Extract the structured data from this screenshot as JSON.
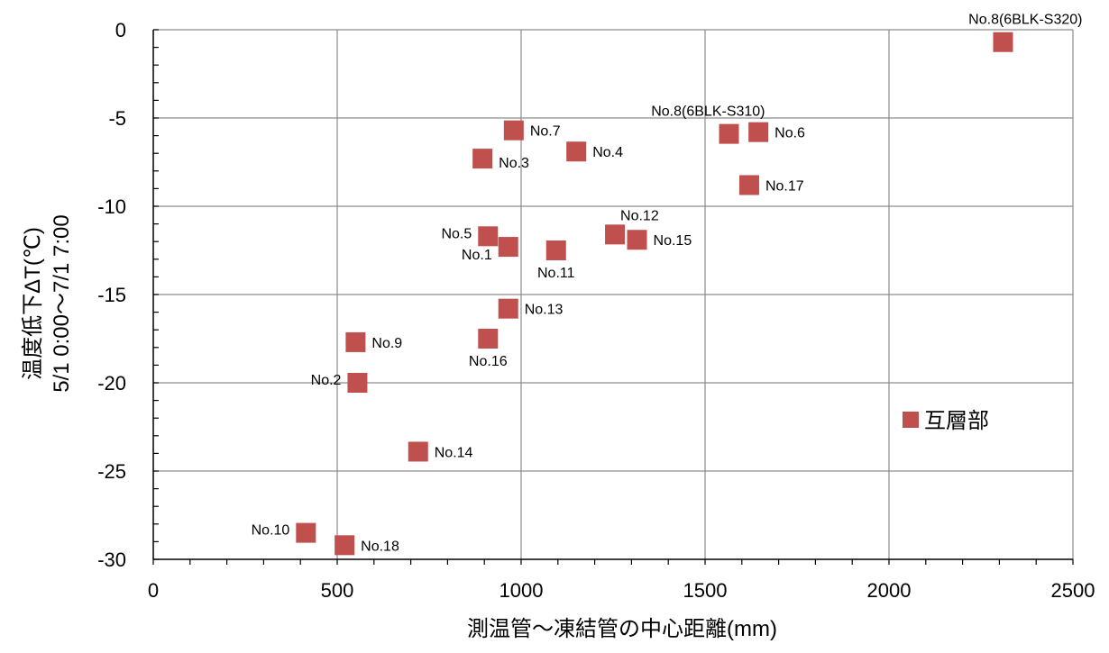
{
  "chart_data": {
    "type": "scatter",
    "title": "",
    "xlabel": "測温管～凍結管の中心距離(mm)",
    "ylabel_line1": "温度低下ΔT(℃)",
    "ylabel_line2": "5/1 0:00～7/1 7:00",
    "xlim": [
      0,
      2500
    ],
    "ylim": [
      -30,
      0
    ],
    "x_major_ticks": [
      0,
      500,
      1000,
      1500,
      2000,
      2500
    ],
    "y_major_ticks": [
      0,
      -5,
      -10,
      -15,
      -20,
      -25,
      -30
    ],
    "x_tick_labels": [
      "0",
      "500",
      "1000",
      "1500",
      "2000",
      "2500"
    ],
    "y_tick_labels": [
      "0",
      "-5",
      "-10",
      "-15",
      "-20",
      "-25",
      "-30"
    ],
    "x_minor_step": 100,
    "y_minor_step": 1,
    "grid": true,
    "marker": "square",
    "legend_placement": "right",
    "series": [
      {
        "name": "互層部",
        "color": "#C0504D",
        "points": [
          {
            "label": "No.1",
            "x": 965,
            "y": -12.3,
            "label_side": "left-below"
          },
          {
            "label": "No.2",
            "x": 555,
            "y": -20.0,
            "label_side": "left"
          },
          {
            "label": "No.3",
            "x": 895,
            "y": -7.3,
            "label_side": "right-below"
          },
          {
            "label": "No.4",
            "x": 1150,
            "y": -6.9,
            "label_side": "right"
          },
          {
            "label": "No.5",
            "x": 910,
            "y": -11.7,
            "label_side": "left"
          },
          {
            "label": "No.6",
            "x": 1645,
            "y": -5.8,
            "label_side": "right"
          },
          {
            "label": "No.7",
            "x": 980,
            "y": -5.7,
            "label_side": "right"
          },
          {
            "label": "No.8(6BLK-S310)",
            "x": 1565,
            "y": -5.9,
            "label_side": "above"
          },
          {
            "label": "No.8(6BLK-S320)",
            "x": 2310,
            "y": -0.7,
            "label_side": "above"
          },
          {
            "label": "No.9",
            "x": 550,
            "y": -17.7,
            "label_side": "right"
          },
          {
            "label": "No.10",
            "x": 415,
            "y": -28.5,
            "label_side": "left"
          },
          {
            "label": "No.11",
            "x": 1095,
            "y": -12.5,
            "label_side": "below"
          },
          {
            "label": "No.12",
            "x": 1255,
            "y": -11.6,
            "label_side": "above"
          },
          {
            "label": "No.13",
            "x": 965,
            "y": -15.8,
            "label_side": "right"
          },
          {
            "label": "No.14",
            "x": 720,
            "y": -23.9,
            "label_side": "right"
          },
          {
            "label": "No.15",
            "x": 1315,
            "y": -11.9,
            "label_side": "right"
          },
          {
            "label": "No.16",
            "x": 910,
            "y": -17.5,
            "label_side": "below"
          },
          {
            "label": "No.17",
            "x": 1620,
            "y": -8.8,
            "label_side": "right"
          },
          {
            "label": "No.18",
            "x": 520,
            "y": -29.2,
            "label_side": "right"
          }
        ]
      }
    ]
  }
}
